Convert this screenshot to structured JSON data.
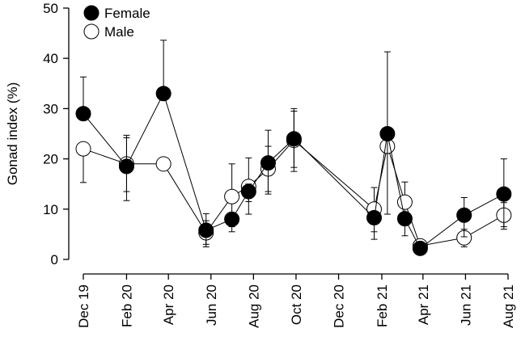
{
  "chart_data": {
    "type": "line",
    "ylabel": "Gonad index (%)",
    "xlabel": "",
    "ylim": [
      0,
      50
    ],
    "y_ticks": [
      0,
      10,
      20,
      30,
      40,
      50
    ],
    "x_range": [
      "2019-12-01",
      "2021-08-01"
    ],
    "x_ticks": [
      "Dec 19",
      "Feb 20",
      "Apr 20",
      "Jun 20",
      "Aug 20",
      "Oct 20",
      "Dec 20",
      "Feb 21",
      "Apr 21",
      "Jun 21",
      "Aug 21"
    ],
    "x_tick_dates": [
      "2019-12-01",
      "2020-02-01",
      "2020-04-01",
      "2020-06-01",
      "2020-08-01",
      "2020-10-01",
      "2020-12-01",
      "2021-02-01",
      "2021-04-01",
      "2021-06-01",
      "2021-08-01"
    ],
    "legend_position": "top-left",
    "grid": false,
    "series": [
      {
        "name": "Female",
        "fill": "#000000",
        "points": [
          {
            "x": "2019-12-01",
            "y": 29,
            "err_lo": 29,
            "err_hi": 36.3
          },
          {
            "x": "2020-02-01",
            "y": 18.5,
            "err_lo": 13.5,
            "err_hi": 24.7
          },
          {
            "x": "2020-03-25",
            "y": 33,
            "err_lo": 33,
            "err_hi": 43.6
          },
          {
            "x": "2020-05-25",
            "y": 5.8,
            "err_lo": 2.5,
            "err_hi": 9.1
          },
          {
            "x": "2020-07-01",
            "y": 8,
            "err_lo": 5.5,
            "err_hi": 8
          },
          {
            "x": "2020-07-25",
            "y": 13.5,
            "err_lo": 9,
            "err_hi": 15
          },
          {
            "x": "2020-08-22",
            "y": 19.2,
            "err_lo": 13,
            "err_hi": 25.7
          },
          {
            "x": "2020-09-28",
            "y": 24,
            "err_lo": 17.5,
            "err_hi": 29.5
          },
          {
            "x": "2021-01-21",
            "y": 8.3,
            "err_lo": 4,
            "err_hi": 8.3
          },
          {
            "x": "2021-02-09",
            "y": 25,
            "err_lo": 9,
            "err_hi": 41.3
          },
          {
            "x": "2021-03-06",
            "y": 8.1,
            "err_lo": 4.7,
            "err_hi": 8.1
          },
          {
            "x": "2021-03-28",
            "y": 2.2,
            "err_lo": 1.5,
            "err_hi": 2.2
          },
          {
            "x": "2021-05-30",
            "y": 8.8,
            "err_lo": 4.5,
            "err_hi": 12.3
          },
          {
            "x": "2021-07-26",
            "y": 13,
            "err_lo": 6,
            "err_hi": 20
          }
        ]
      },
      {
        "name": "Male",
        "fill": "#ffffff",
        "points": [
          {
            "x": "2019-12-01",
            "y": 22,
            "err_lo": 15.3,
            "err_hi": 22
          },
          {
            "x": "2020-02-01",
            "y": 19,
            "err_lo": 11.7,
            "err_hi": 24.2
          },
          {
            "x": "2020-03-25",
            "y": 19,
            "err_lo": 19,
            "err_hi": 19
          },
          {
            "x": "2020-05-25",
            "y": 5.3,
            "err_lo": 3,
            "err_hi": 7.7
          },
          {
            "x": "2020-07-01",
            "y": 12.5,
            "err_lo": 6.5,
            "err_hi": 19
          },
          {
            "x": "2020-07-25",
            "y": 14.5,
            "err_lo": 11.5,
            "err_hi": 20.2
          },
          {
            "x": "2020-08-22",
            "y": 18,
            "err_lo": 13.5,
            "err_hi": 22.5
          },
          {
            "x": "2020-09-28",
            "y": 23.7,
            "err_lo": 18.3,
            "err_hi": 30
          },
          {
            "x": "2021-01-21",
            "y": 10,
            "err_lo": 5.5,
            "err_hi": 14.3
          },
          {
            "x": "2021-02-09",
            "y": 22.5,
            "err_lo": 22.5,
            "err_hi": 22.5
          },
          {
            "x": "2021-03-06",
            "y": 11.4,
            "err_lo": 7,
            "err_hi": 15.4
          },
          {
            "x": "2021-03-28",
            "y": 2.7,
            "err_lo": 2,
            "err_hi": 3.3
          },
          {
            "x": "2021-05-30",
            "y": 4.3,
            "err_lo": 2.5,
            "err_hi": 6
          },
          {
            "x": "2021-07-26",
            "y": 8.8,
            "err_lo": 6.5,
            "err_hi": 11.3
          }
        ]
      }
    ]
  }
}
